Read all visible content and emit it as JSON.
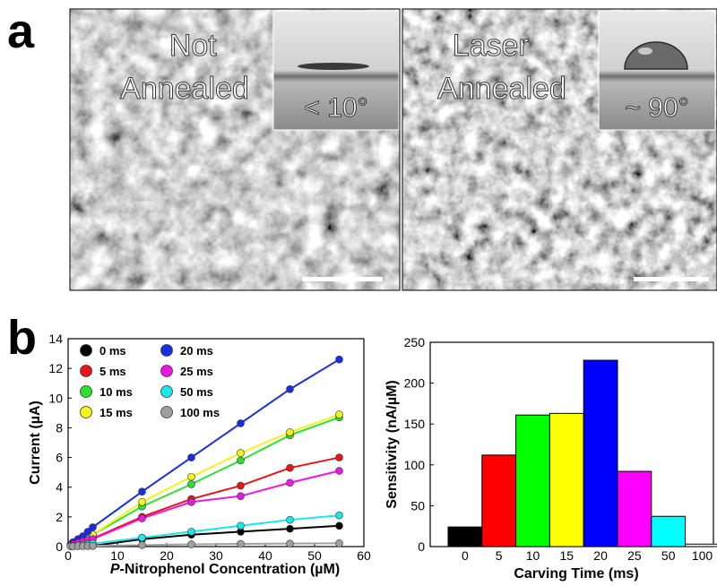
{
  "panel_a": {
    "label": "a",
    "left_image": {
      "caption": "Not\nAnnealed",
      "contact_angle": "< 10°"
    },
    "right_image": {
      "caption": "Laser\nAnnealed",
      "contact_angle": "~ 90°"
    }
  },
  "panel_b": {
    "label": "b"
  },
  "chart_data": [
    {
      "type": "line",
      "xlabel": "P-Nitrophenol Concentration (µM)",
      "ylabel": "Current (µA)",
      "xlim": [
        0,
        60
      ],
      "ylim": [
        0,
        14
      ],
      "xticks": [
        0,
        10,
        20,
        30,
        40,
        50,
        60
      ],
      "yticks": [
        0,
        2,
        4,
        6,
        8,
        10,
        12,
        14
      ],
      "grid": false,
      "legend_position": "top-left",
      "x": [
        0.5,
        1,
        2,
        3,
        4,
        5,
        15,
        25,
        35,
        45,
        55
      ],
      "series": [
        {
          "name": "0 ms",
          "color": "#000000",
          "values": [
            0.05,
            0.05,
            0.05,
            0.05,
            0.05,
            0.05,
            0.5,
            0.8,
            1.0,
            1.2,
            1.4
          ]
        },
        {
          "name": "5 ms",
          "color": "#e8141a",
          "values": [
            0.1,
            0.15,
            0.25,
            0.35,
            0.45,
            0.55,
            2.0,
            3.2,
            4.1,
            5.3,
            6.0
          ]
        },
        {
          "name": "10 ms",
          "color": "#2ee02e",
          "values": [
            0.1,
            0.2,
            0.3,
            0.5,
            0.6,
            0.8,
            2.7,
            4.2,
            5.8,
            7.5,
            8.7
          ]
        },
        {
          "name": "15 ms",
          "color": "#f4f41a",
          "values": [
            0.1,
            0.2,
            0.35,
            0.5,
            0.7,
            0.8,
            3.0,
            4.7,
            6.3,
            7.7,
            8.9
          ]
        },
        {
          "name": "20 ms",
          "color": "#1a2ee0",
          "values": [
            0.15,
            0.3,
            0.5,
            0.7,
            1.0,
            1.3,
            3.7,
            6.0,
            8.3,
            10.6,
            12.6
          ]
        },
        {
          "name": "25 ms",
          "color": "#e81ae0",
          "values": [
            0.1,
            0.15,
            0.25,
            0.35,
            0.45,
            0.5,
            1.9,
            3.0,
            3.4,
            4.3,
            5.1
          ]
        },
        {
          "name": "50 ms",
          "color": "#1ae8e8",
          "values": [
            0.05,
            0.05,
            0.1,
            0.1,
            0.15,
            0.2,
            0.6,
            1.0,
            1.4,
            1.8,
            2.1
          ]
        },
        {
          "name": "100 ms",
          "color": "#a0a0a0",
          "values": [
            0.02,
            0.02,
            0.03,
            0.03,
            0.04,
            0.05,
            0.1,
            0.15,
            0.18,
            0.2,
            0.22
          ]
        }
      ]
    },
    {
      "type": "bar",
      "xlabel": "Carving Time (ms)",
      "ylabel": "Sensitivity (nA/µM)",
      "ylim": [
        0,
        250
      ],
      "yticks": [
        0,
        50,
        100,
        150,
        200,
        250
      ],
      "grid": false,
      "categories": [
        "0",
        "5",
        "10",
        "15",
        "20",
        "25",
        "50",
        "100"
      ],
      "values": [
        24,
        112,
        161,
        163,
        228,
        92,
        37,
        3
      ],
      "colors": [
        "#000000",
        "#ff0000",
        "#00ff00",
        "#ffff00",
        "#0000ff",
        "#ff00ff",
        "#00ffff",
        "#ffffff"
      ]
    }
  ]
}
